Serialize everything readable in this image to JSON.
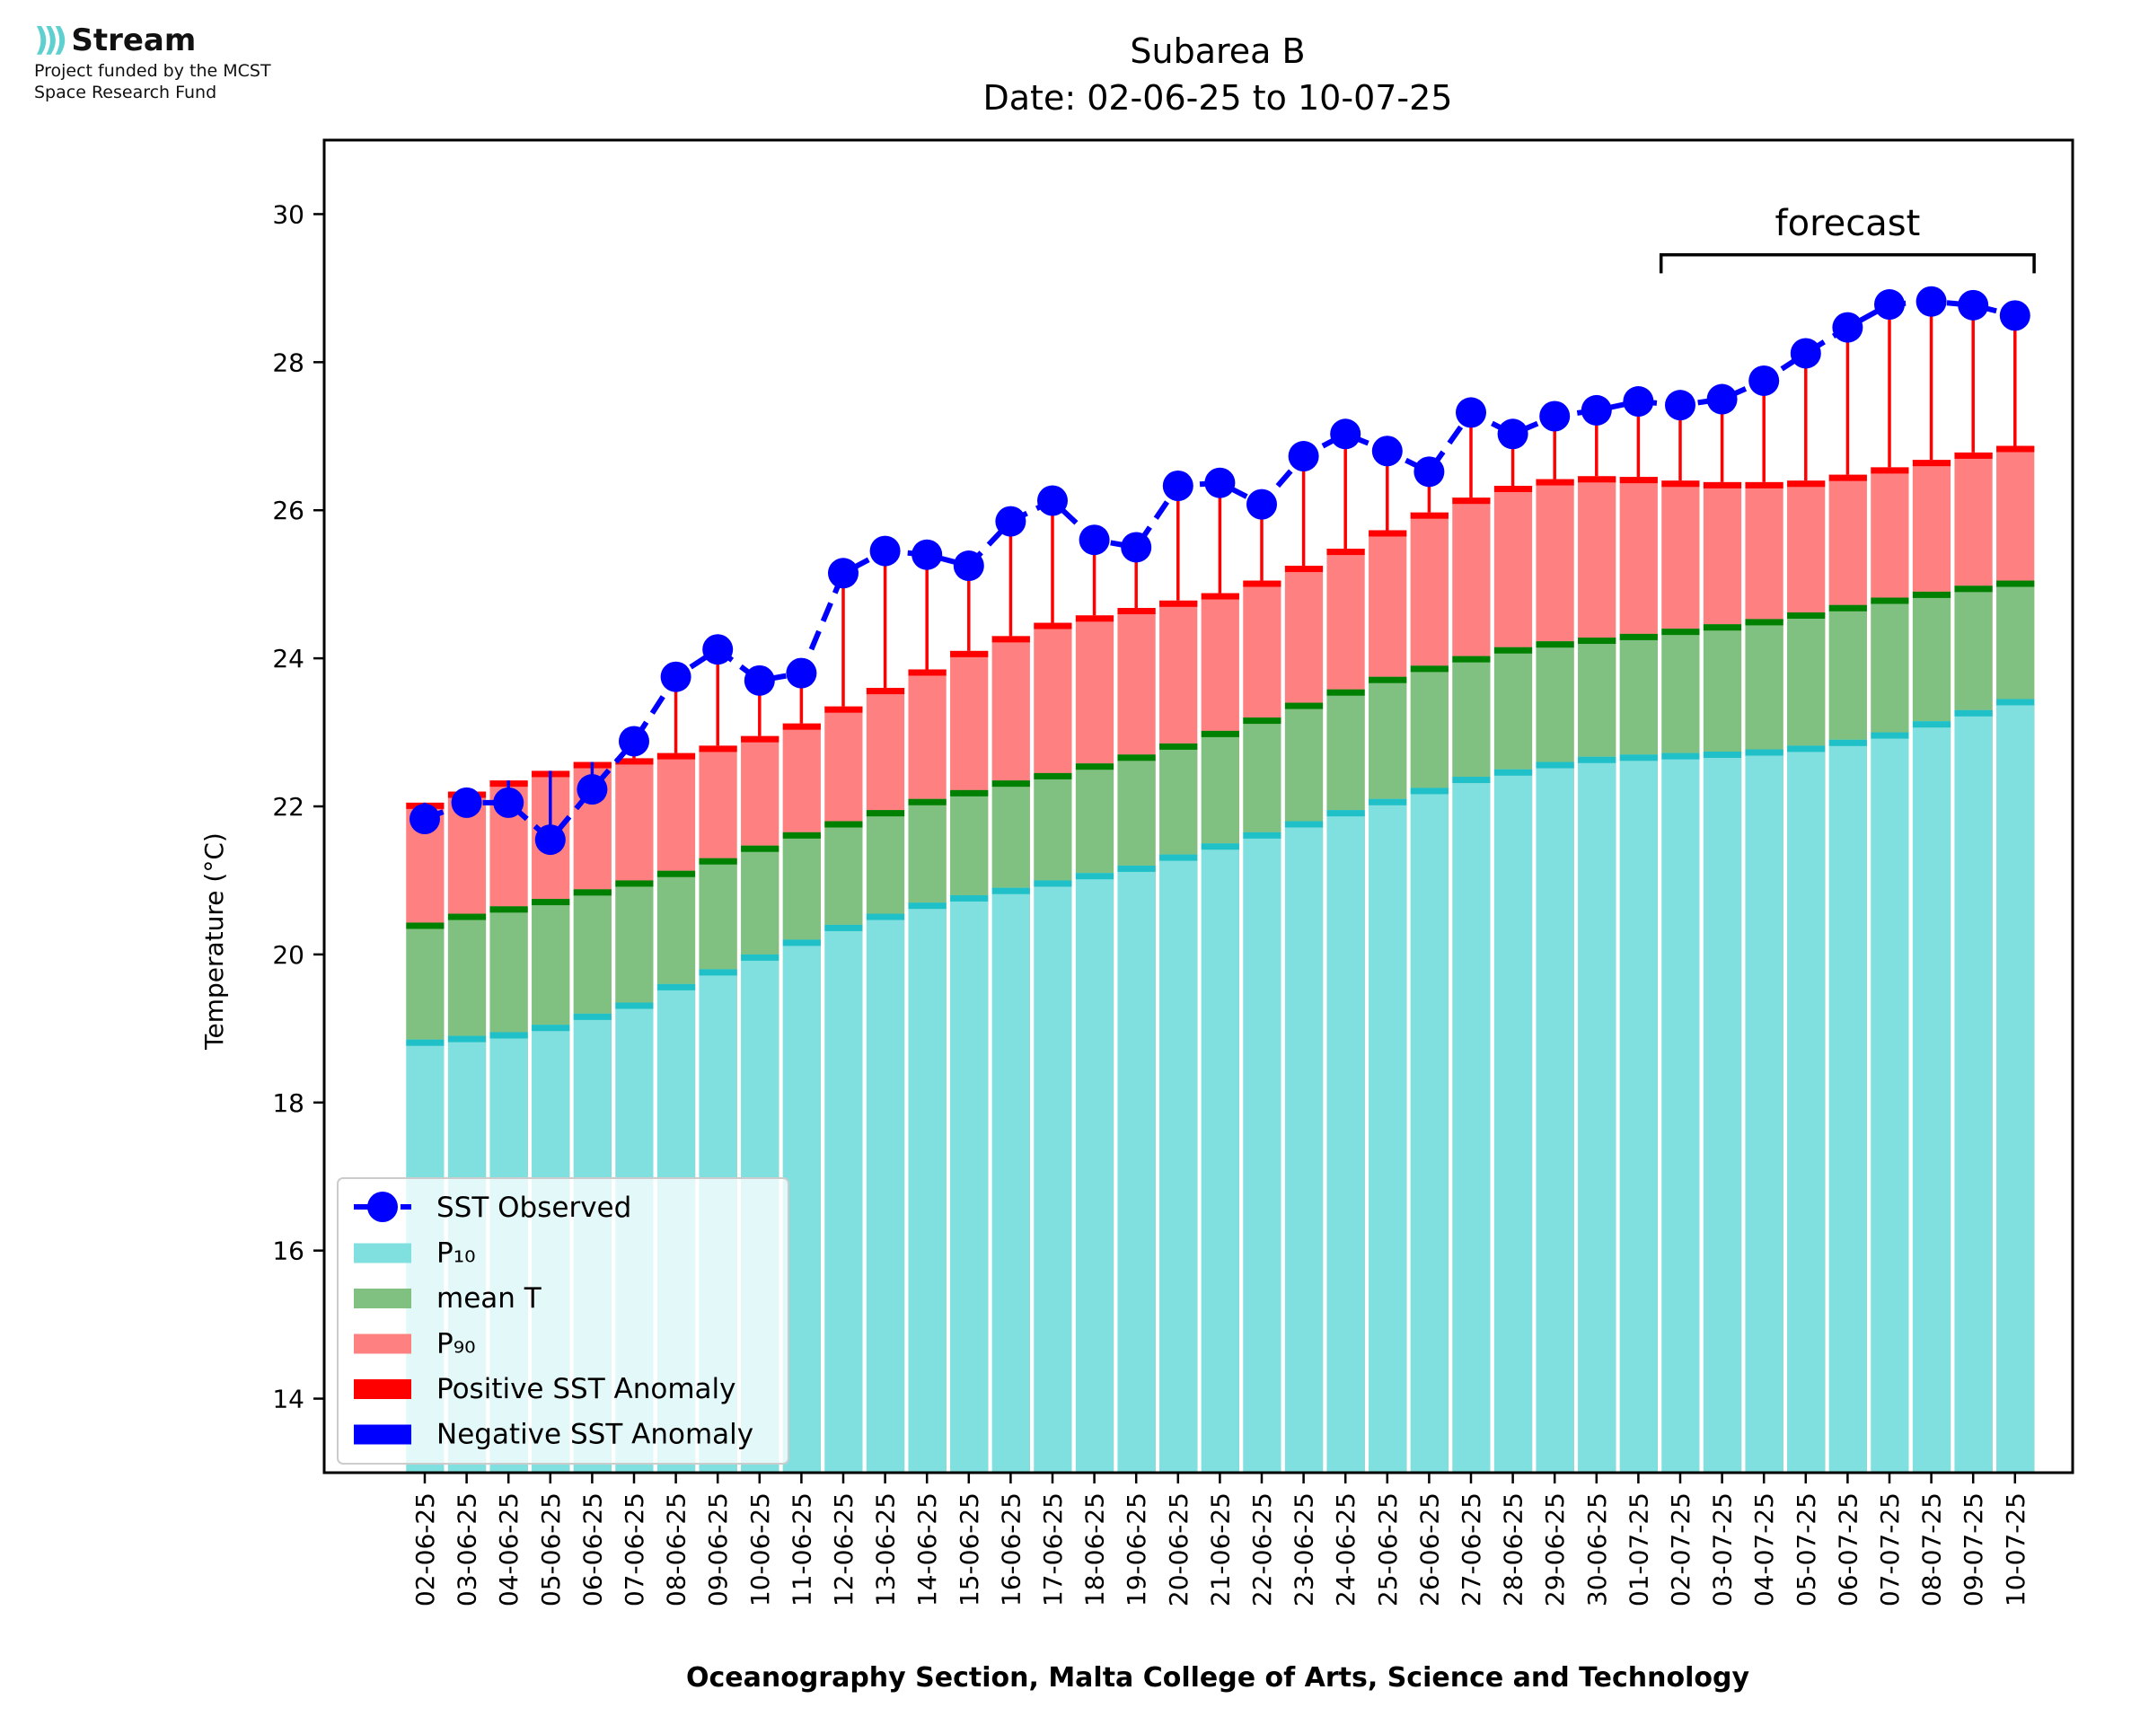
{
  "logo": {
    "name": "Stream",
    "subtitle_line1": "Project funded by the MCST",
    "subtitle_line2": "Space Research Fund"
  },
  "chart_data": {
    "type": "bar",
    "title_line1": "Subarea B",
    "title_line2": "Date: 02-06-25 to 10-07-25",
    "xlabel": "Oceanography Section, Malta College of Arts, Science and Technology",
    "ylabel": "Temperature (°C)",
    "ylim": [
      13,
      31
    ],
    "yticks": [
      14,
      16,
      18,
      20,
      22,
      24,
      26,
      28,
      30
    ],
    "forecast_label": "forecast",
    "forecast_range": [
      "02-07-25",
      "10-07-25"
    ],
    "categories": [
      "02-06-25",
      "03-06-25",
      "04-06-25",
      "05-06-25",
      "06-06-25",
      "07-06-25",
      "08-06-25",
      "09-06-25",
      "10-06-25",
      "11-06-25",
      "12-06-25",
      "13-06-25",
      "14-06-25",
      "15-06-25",
      "16-06-25",
      "17-06-25",
      "18-06-25",
      "19-06-25",
      "20-06-25",
      "21-06-25",
      "22-06-25",
      "23-06-25",
      "24-06-25",
      "25-06-25",
      "26-06-25",
      "27-06-25",
      "28-06-25",
      "29-06-25",
      "30-06-25",
      "01-07-25",
      "02-07-25",
      "03-07-25",
      "04-07-25",
      "05-07-25",
      "06-07-25",
      "07-07-25",
      "08-07-25",
      "09-07-25",
      "10-07-25"
    ],
    "series": [
      {
        "name": "P₁₀",
        "color": "#80dfdf",
        "values": [
          18.85,
          18.9,
          18.95,
          19.05,
          19.2,
          19.35,
          19.6,
          19.8,
          20.0,
          20.2,
          20.4,
          20.55,
          20.7,
          20.8,
          20.9,
          21.0,
          21.1,
          21.2,
          21.35,
          21.5,
          21.65,
          21.8,
          21.95,
          22.1,
          22.25,
          22.4,
          22.5,
          22.6,
          22.67,
          22.7,
          22.72,
          22.74,
          22.77,
          22.82,
          22.9,
          23.0,
          23.15,
          23.3,
          23.45
        ]
      },
      {
        "name": "mean T",
        "color": "#80c080",
        "values": [
          20.43,
          20.55,
          20.65,
          20.75,
          20.88,
          21.0,
          21.13,
          21.3,
          21.47,
          21.65,
          21.8,
          21.95,
          22.1,
          22.22,
          22.35,
          22.45,
          22.58,
          22.7,
          22.85,
          23.02,
          23.2,
          23.4,
          23.58,
          23.75,
          23.9,
          24.03,
          24.15,
          24.23,
          24.28,
          24.33,
          24.4,
          24.46,
          24.53,
          24.62,
          24.72,
          24.82,
          24.9,
          24.98,
          25.05
        ]
      },
      {
        "name": "P₉₀",
        "color": "#ff8080",
        "values": [
          22.05,
          22.2,
          22.35,
          22.48,
          22.6,
          22.65,
          22.72,
          22.82,
          22.95,
          23.12,
          23.35,
          23.6,
          23.85,
          24.1,
          24.3,
          24.48,
          24.58,
          24.68,
          24.78,
          24.88,
          25.05,
          25.25,
          25.48,
          25.73,
          25.97,
          26.17,
          26.33,
          26.42,
          26.46,
          26.45,
          26.4,
          26.38,
          26.38,
          26.4,
          26.48,
          26.58,
          26.68,
          26.78,
          26.87
        ]
      },
      {
        "name": "SST Observed",
        "color": "#0000ff",
        "values": [
          21.83,
          22.05,
          22.05,
          21.55,
          22.23,
          22.88,
          23.75,
          24.12,
          23.7,
          23.8,
          25.15,
          25.45,
          25.4,
          25.25,
          25.85,
          26.13,
          25.6,
          25.5,
          26.33,
          26.37,
          26.08,
          26.73,
          27.03,
          26.8,
          26.52,
          27.32,
          27.03,
          27.27,
          27.35,
          27.47,
          27.42,
          27.5,
          27.75,
          28.12,
          28.47,
          28.78,
          28.82,
          28.77,
          28.63
        ]
      }
    ],
    "legend": {
      "placement": "lower-left",
      "entries": [
        "SST Observed",
        "P₁₀",
        "mean T",
        "P₉₀",
        "Positive SST Anomaly",
        "Negative SST Anomaly"
      ],
      "colors": [
        "#0000ff",
        "#80dfdf",
        "#80c080",
        "#ff8080",
        "#ff0000",
        "#0000ff"
      ]
    },
    "colors": {
      "p10_cap": "#20c0c8",
      "mean_cap": "#008000",
      "p90_cap": "#ff0000",
      "positive_anomaly": "#ff0000",
      "negative_anomaly": "#0000ff"
    }
  }
}
